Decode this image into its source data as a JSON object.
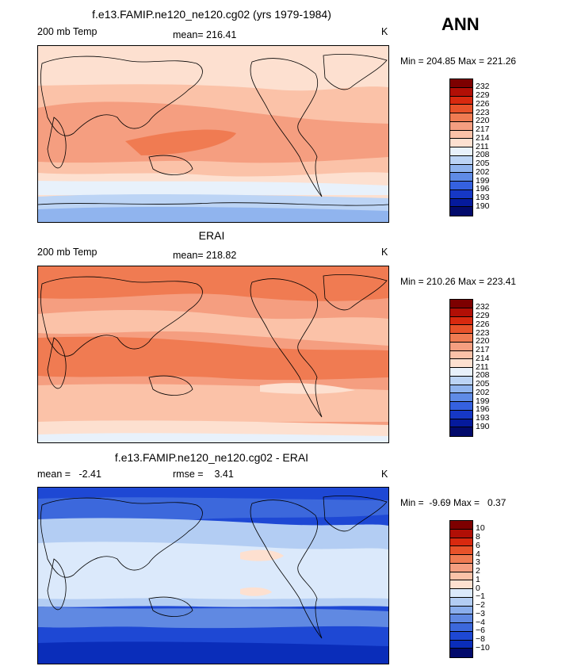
{
  "season": "ANN",
  "palette_temp": [
    "#7d0000",
    "#b10f06",
    "#d8290f",
    "#e8522a",
    "#f07b52",
    "#f59e80",
    "#fbc2a8",
    "#fde0d0",
    "#e8f1fb",
    "#bcd4f5",
    "#90b4ee",
    "#5f8be6",
    "#3561e0",
    "#1638c6",
    "#051a9c",
    "#020a6c"
  ],
  "palette_diff": [
    "#7d0000",
    "#b10f06",
    "#d8290f",
    "#e8522a",
    "#f07b52",
    "#f59e80",
    "#fbc2a8",
    "#fde0d0",
    "#dbe9fb",
    "#b3cdf3",
    "#8aaeec",
    "#6089e2",
    "#3c68dc",
    "#1e48d4",
    "#0a2dba",
    "#020a6c"
  ],
  "panels": [
    {
      "title": "f.e13.FAMIP.ne120_ne120.cg02 (yrs 1979-1984)",
      "left_label": "200 mb Temp",
      "center_label": "mean= 216.41",
      "right_label": "K",
      "minmax": "Min = 204.85 Max = 221.26",
      "levels": [
        "232",
        "229",
        "226",
        "223",
        "220",
        "217",
        "214",
        "211",
        "208",
        "205",
        "202",
        "199",
        "196",
        "193",
        "190"
      ],
      "scheme": "temp"
    },
    {
      "title": "ERAI",
      "left_label": "200 mb Temp",
      "center_label": "mean= 218.82",
      "right_label": "K",
      "minmax": "Min = 210.26 Max = 223.41",
      "levels": [
        "232",
        "229",
        "226",
        "223",
        "220",
        "217",
        "214",
        "211",
        "208",
        "205",
        "202",
        "199",
        "196",
        "193",
        "190"
      ],
      "scheme": "temp"
    },
    {
      "title": "f.e13.FAMIP.ne120_ne120.cg02 - ERAI",
      "left_label": "mean =   -2.41",
      "center_label": "rmse =    3.41",
      "right_label": "K",
      "minmax": "Min =  -9.69 Max =   0.37",
      "levels": [
        "10",
        "8",
        "6",
        "4",
        "3",
        "2",
        "1",
        "0",
        "−1",
        "−2",
        "−3",
        "−4",
        "−6",
        "−8",
        "−10"
      ],
      "scheme": "diff"
    }
  ]
}
